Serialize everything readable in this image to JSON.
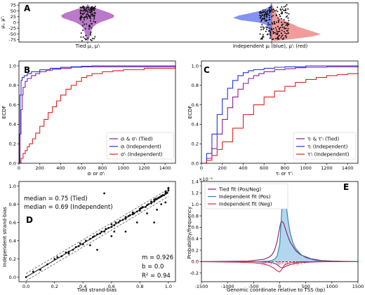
{
  "panels": {
    "A": {
      "letter": "A"
    },
    "B": {
      "letter": "B"
    },
    "C": {
      "letter": "C"
    },
    "D": {
      "letter": "D"
    },
    "E": {
      "letter": "E"
    }
  },
  "colors": {
    "tied": "#8b1a9b",
    "independent_mu": "#2233dd",
    "independent_sigma": "#dd2222",
    "violin_tied": "#b060c0",
    "violin_blue": "#6f7ff0",
    "violin_red": "#f08a8a",
    "e_tied": "#8b1a6b",
    "e_pos": "#2a7fa8",
    "e_neg": "#d6283c",
    "e_fill": "#a9d3ec"
  },
  "chart_data": [
    {
      "panel": "A",
      "type": "scatter",
      "title": "",
      "xlabel_left": "Tied μᵢ, μ'ᵢ",
      "xlabel_right": "Independent μᵢ (blue), μ'ᵢ (red)",
      "ylabel": "μᵢ, μ'ᵢ",
      "ylim": [
        -85,
        85
      ],
      "yticks": [
        75,
        50,
        25,
        0,
        -25,
        -50,
        -75
      ],
      "ytick_labels": [
        "75",
        "50",
        "25",
        "0",
        "-25",
        "-50",
        "-75"
      ],
      "tied_density": {
        "y": [
          80,
          70,
          60,
          50,
          40,
          30,
          20,
          10,
          0,
          -10,
          -20,
          -30,
          -40,
          -50,
          -60,
          -70,
          -80
        ],
        "halfwidth": [
          0.0,
          0.05,
          0.35,
          0.6,
          0.85,
          1.0,
          0.95,
          0.7,
          0.45,
          0.3,
          0.2,
          0.15,
          0.12,
          0.1,
          0.07,
          0.05,
          0.02
        ]
      },
      "blue_density": {
        "y": [
          80,
          70,
          60,
          50,
          40,
          30,
          20,
          10,
          0,
          -10,
          -20,
          -30,
          -40,
          -50,
          -60,
          -70,
          -80
        ],
        "halfwidth": [
          0.02,
          0.05,
          0.15,
          0.3,
          0.55,
          0.85,
          1.0,
          0.8,
          0.35,
          0.15,
          0.1,
          0.08,
          0.06,
          0.05,
          0.04,
          0.02,
          0.0
        ]
      },
      "red_density": {
        "y": [
          80,
          70,
          60,
          50,
          40,
          30,
          20,
          10,
          0,
          -10,
          -20,
          -30,
          -40,
          -50,
          -60,
          -70,
          -80
        ],
        "halfwidth": [
          0.0,
          0.02,
          0.05,
          0.08,
          0.1,
          0.12,
          0.15,
          0.25,
          0.35,
          0.45,
          0.55,
          0.7,
          0.85,
          1.0,
          0.85,
          0.5,
          0.1
        ]
      }
    },
    {
      "panel": "B",
      "type": "line",
      "title": "",
      "xlabel": "σᵢ or σ'ᵢ",
      "ylabel": "ECDF",
      "xlim": [
        0,
        1500
      ],
      "ylim": [
        0,
        1.05
      ],
      "xticks": [
        0,
        200,
        400,
        600,
        800,
        1000,
        1200,
        1400
      ],
      "yticks": [
        0.0,
        0.2,
        0.4,
        0.6,
        0.8,
        1.0
      ],
      "ytick_labels": [
        "0.0",
        "0.2",
        "0.4",
        "0.6",
        "0.8",
        "1.0"
      ],
      "legend_position": "bottom-right",
      "series": [
        {
          "name": "σᵢ & σ'ᵢ (Tied)",
          "color": "#8b1a9b",
          "x": [
            0,
            10,
            20,
            30,
            40,
            60,
            80,
            120,
            160,
            200,
            260,
            320,
            400,
            500,
            600,
            1500
          ],
          "y": [
            0.0,
            0.3,
            0.55,
            0.7,
            0.78,
            0.84,
            0.87,
            0.9,
            0.92,
            0.94,
            0.955,
            0.965,
            0.975,
            0.985,
            0.99,
            0.995
          ]
        },
        {
          "name": "σᵢ (Independent)",
          "color": "#2233dd",
          "x": [
            0,
            5,
            10,
            20,
            30,
            50,
            80,
            120,
            200,
            300,
            400,
            500,
            600,
            700,
            1500
          ],
          "y": [
            0.0,
            0.3,
            0.7,
            0.85,
            0.88,
            0.9,
            0.92,
            0.94,
            0.96,
            0.975,
            0.985,
            0.99,
            0.995,
            1.0,
            1.0
          ]
        },
        {
          "name": "σ'ᵢ (Independent)",
          "color": "#dd2222",
          "x": [
            0,
            20,
            40,
            60,
            80,
            100,
            130,
            160,
            200,
            240,
            280,
            320,
            360,
            400,
            450,
            500,
            550,
            600,
            650,
            700,
            800,
            900,
            1000,
            1200,
            1500
          ],
          "y": [
            0.0,
            0.05,
            0.1,
            0.13,
            0.17,
            0.2,
            0.25,
            0.31,
            0.38,
            0.45,
            0.52,
            0.58,
            0.64,
            0.7,
            0.76,
            0.8,
            0.84,
            0.88,
            0.9,
            0.92,
            0.94,
            0.95,
            0.96,
            0.975,
            0.985
          ]
        }
      ]
    },
    {
      "panel": "C",
      "type": "line",
      "title": "",
      "xlabel": "τᵢ or τ'ᵢ",
      "ylabel": "ECDF",
      "xlim": [
        0,
        1500
      ],
      "ylim": [
        0,
        1.05
      ],
      "xticks": [
        0,
        200,
        400,
        600,
        800,
        1000,
        1200,
        1400
      ],
      "yticks": [
        0.0,
        0.2,
        0.4,
        0.6,
        0.8,
        1.0
      ],
      "ytick_labels": [
        "0.0",
        "0.2",
        "0.4",
        "0.6",
        "0.8",
        "1.0"
      ],
      "legend_position": "bottom-right",
      "series": [
        {
          "name": "τᵢ & τ'ᵢ (Tied)",
          "color": "#8b1a9b",
          "x": [
            0,
            50,
            100,
            150,
            200,
            250,
            300,
            350,
            400,
            450,
            500,
            550,
            600,
            700,
            800,
            900,
            1000,
            1200,
            1500
          ],
          "y": [
            0.0,
            0.05,
            0.15,
            0.3,
            0.45,
            0.57,
            0.68,
            0.76,
            0.82,
            0.87,
            0.9,
            0.92,
            0.94,
            0.96,
            0.97,
            0.98,
            0.985,
            0.99,
            1.0
          ]
        },
        {
          "name": "τᵢ (Independent)",
          "color": "#2233dd",
          "x": [
            0,
            50,
            100,
            150,
            200,
            250,
            300,
            350,
            400,
            450,
            500,
            600,
            700,
            800,
            1000,
            1500
          ],
          "y": [
            0.0,
            0.1,
            0.3,
            0.5,
            0.66,
            0.77,
            0.85,
            0.9,
            0.93,
            0.95,
            0.96,
            0.975,
            0.985,
            0.99,
            1.0,
            1.0
          ]
        },
        {
          "name": "τ'ᵢ (Independent)",
          "color": "#dd2222",
          "x": [
            0,
            50,
            100,
            150,
            200,
            300,
            400,
            500,
            600,
            700,
            800,
            900,
            1000,
            1100,
            1200,
            1300,
            1400,
            1500
          ],
          "y": [
            0.0,
            0.03,
            0.08,
            0.14,
            0.22,
            0.36,
            0.5,
            0.6,
            0.68,
            0.74,
            0.79,
            0.83,
            0.86,
            0.88,
            0.9,
            0.91,
            0.92,
            0.93
          ]
        }
      ]
    },
    {
      "panel": "D",
      "type": "scatter",
      "title": "",
      "xlabel": "Tied strand-bias",
      "ylabel": "Independent strand-bias",
      "xlim": [
        -0.05,
        1.05
      ],
      "ylim": [
        -0.05,
        1.05
      ],
      "xticks": [
        0.0,
        0.2,
        0.4,
        0.6,
        0.8,
        1.0
      ],
      "yticks": [
        0.0,
        0.2,
        0.4,
        0.6,
        0.8,
        1.0
      ],
      "tick_labels": [
        "0.0",
        "0.2",
        "0.4",
        "0.6",
        "0.8",
        "1.0"
      ],
      "annotations": {
        "median_tied": "median = 0.75 (Tied)",
        "median_ind": "median = 0.69 (Independent)",
        "m": "m = 0.926",
        "b": "b = 0.0",
        "r2": "R² = 0.94"
      },
      "fit": {
        "m": 0.926,
        "b": 0.0
      },
      "points": {
        "x": [
          0.0,
          0.05,
          0.1,
          0.15,
          0.2,
          0.22,
          0.25,
          0.28,
          0.3,
          0.33,
          0.35,
          0.37,
          0.4,
          0.42,
          0.45,
          0.47,
          0.48,
          0.5,
          0.52,
          0.53,
          0.55,
          0.56,
          0.58,
          0.6,
          0.6,
          0.62,
          0.63,
          0.65,
          0.66,
          0.68,
          0.7,
          0.7,
          0.72,
          0.73,
          0.75,
          0.75,
          0.76,
          0.78,
          0.8,
          0.8,
          0.81,
          0.82,
          0.84,
          0.85,
          0.86,
          0.88,
          0.88,
          0.9,
          0.9,
          0.91,
          0.92,
          0.93,
          0.94,
          0.95,
          0.96,
          0.97,
          0.98,
          0.98,
          0.99,
          1.0,
          1.0,
          1.0,
          0.55,
          0.5,
          0.9,
          0.45,
          0.6,
          0.7,
          0.95,
          0.85,
          0.62,
          0.78,
          0.92,
          0.98,
          0.3,
          0.38
        ],
        "y": [
          0.0,
          0.06,
          0.08,
          0.14,
          0.2,
          0.22,
          0.23,
          0.27,
          0.28,
          0.3,
          0.33,
          0.34,
          0.36,
          0.4,
          0.42,
          0.44,
          0.45,
          0.47,
          0.48,
          0.5,
          0.5,
          0.53,
          0.54,
          0.55,
          0.58,
          0.57,
          0.6,
          0.6,
          0.62,
          0.63,
          0.64,
          0.66,
          0.67,
          0.68,
          0.69,
          0.71,
          0.7,
          0.72,
          0.73,
          0.75,
          0.76,
          0.77,
          0.77,
          0.79,
          0.8,
          0.81,
          0.83,
          0.83,
          0.85,
          0.86,
          0.86,
          0.87,
          0.88,
          0.89,
          0.9,
          0.9,
          0.92,
          0.94,
          0.93,
          0.95,
          0.98,
          0.97,
          0.92,
          0.3,
          0.6,
          0.35,
          0.45,
          0.5,
          0.8,
          0.7,
          0.5,
          0.6,
          0.74,
          0.82,
          0.26,
          0.37
        ]
      }
    },
    {
      "panel": "E",
      "type": "line",
      "title": "",
      "xlabel": "Genomic coordinate relative to TSS (bp)",
      "ylabel": "Probability/frequency",
      "scale_label": "×10⁻³",
      "xlim": [
        -1500,
        1500
      ],
      "ylim": [
        -0.35,
        1.4
      ],
      "xticks": [
        -1500,
        -1000,
        -500,
        0,
        500,
        1000,
        1500
      ],
      "yticks": [
        -0.2,
        0.0,
        0.2,
        0.4,
        0.6,
        0.8,
        1.0,
        1.2,
        1.4
      ],
      "ytick_labels": [
        "-0.2",
        "0.0",
        "0.2",
        "0.4",
        "0.6",
        "0.8",
        "1.0",
        "1.2",
        "1.4"
      ],
      "legend_position": "top-left",
      "series": [
        {
          "name": "Tied fit (Pos/Neg)",
          "color": "#8b1a6b",
          "x": [
            -1500,
            -600,
            -300,
            -200,
            -150,
            -100,
            -50,
            -20,
            0,
            20,
            50,
            80,
            100,
            150,
            200,
            300,
            400,
            600,
            800,
            1000,
            1500
          ],
          "y": [
            0.0,
            0.01,
            0.04,
            0.08,
            0.12,
            0.2,
            0.35,
            0.5,
            0.6,
            0.68,
            0.7,
            0.66,
            0.6,
            0.46,
            0.34,
            0.2,
            0.12,
            0.05,
            0.02,
            0.01,
            0.0
          ],
          "mirror": true
        },
        {
          "name": "Independent fit (Pos)",
          "color": "#2a7fa8",
          "x": [
            -1500,
            -400,
            -200,
            -100,
            -50,
            0,
            30,
            60,
            80,
            100,
            130,
            160,
            200,
            250,
            300,
            400,
            500,
            700,
            1000,
            1500
          ],
          "y": [
            0.0,
            0.0,
            0.01,
            0.04,
            0.1,
            0.3,
            0.75,
            1.2,
            1.32,
            1.2,
            0.95,
            0.72,
            0.5,
            0.34,
            0.24,
            0.13,
            0.07,
            0.02,
            0.0,
            0.0
          ]
        },
        {
          "name": "Independent fit (Neg)",
          "color": "#d6283c",
          "x": [
            -1500,
            -800,
            -500,
            -300,
            -200,
            -100,
            -50,
            0,
            50,
            100,
            200,
            400,
            1500
          ],
          "y": [
            0.0,
            -0.01,
            -0.02,
            -0.04,
            -0.07,
            -0.12,
            -0.16,
            -0.18,
            -0.12,
            -0.05,
            -0.02,
            0.0,
            0.0
          ]
        }
      ]
    }
  ]
}
